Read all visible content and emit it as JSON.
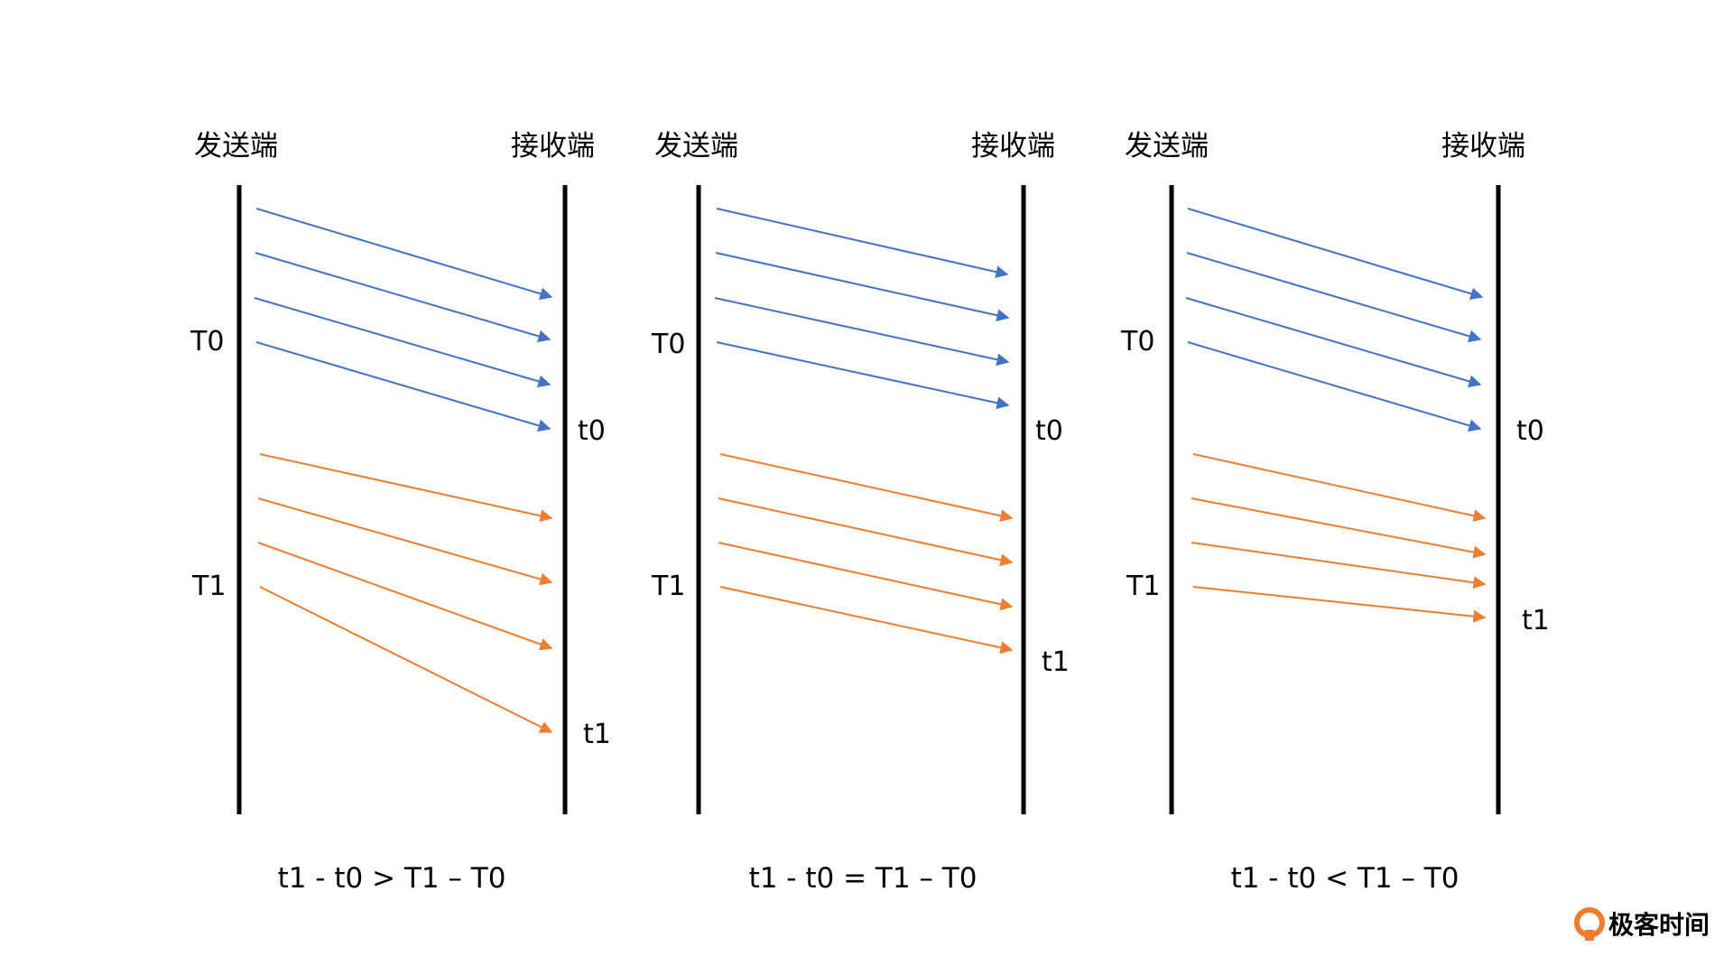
{
  "colors": {
    "blue": "#4472c4",
    "orange": "#ed7d31",
    "timeline": "#000000",
    "logo": "#f07c2e"
  },
  "panels": [
    {
      "sender_label": "发送端",
      "receiver_label": "接收端",
      "T0_label": "T0",
      "T1_label": "T1",
      "t0_label": "t0",
      "t1_label": "t1",
      "caption": "t1 - t0 > T1 – T0"
    },
    {
      "sender_label": "发送端",
      "receiver_label": "接收端",
      "T0_label": "T0",
      "T1_label": "T1",
      "t0_label": "t0",
      "t1_label": "t1",
      "caption": "t1 - t0 = T1 – T0"
    },
    {
      "sender_label": "发送端",
      "receiver_label": "接收端",
      "T0_label": "T0",
      "T1_label": "T1",
      "t0_label": "t0",
      "t1_label": "t1",
      "caption": "t1 - t0 < T1 – T0"
    }
  ],
  "watermark": {
    "text": "极客时间",
    "icon": "geektime-logo-icon"
  }
}
